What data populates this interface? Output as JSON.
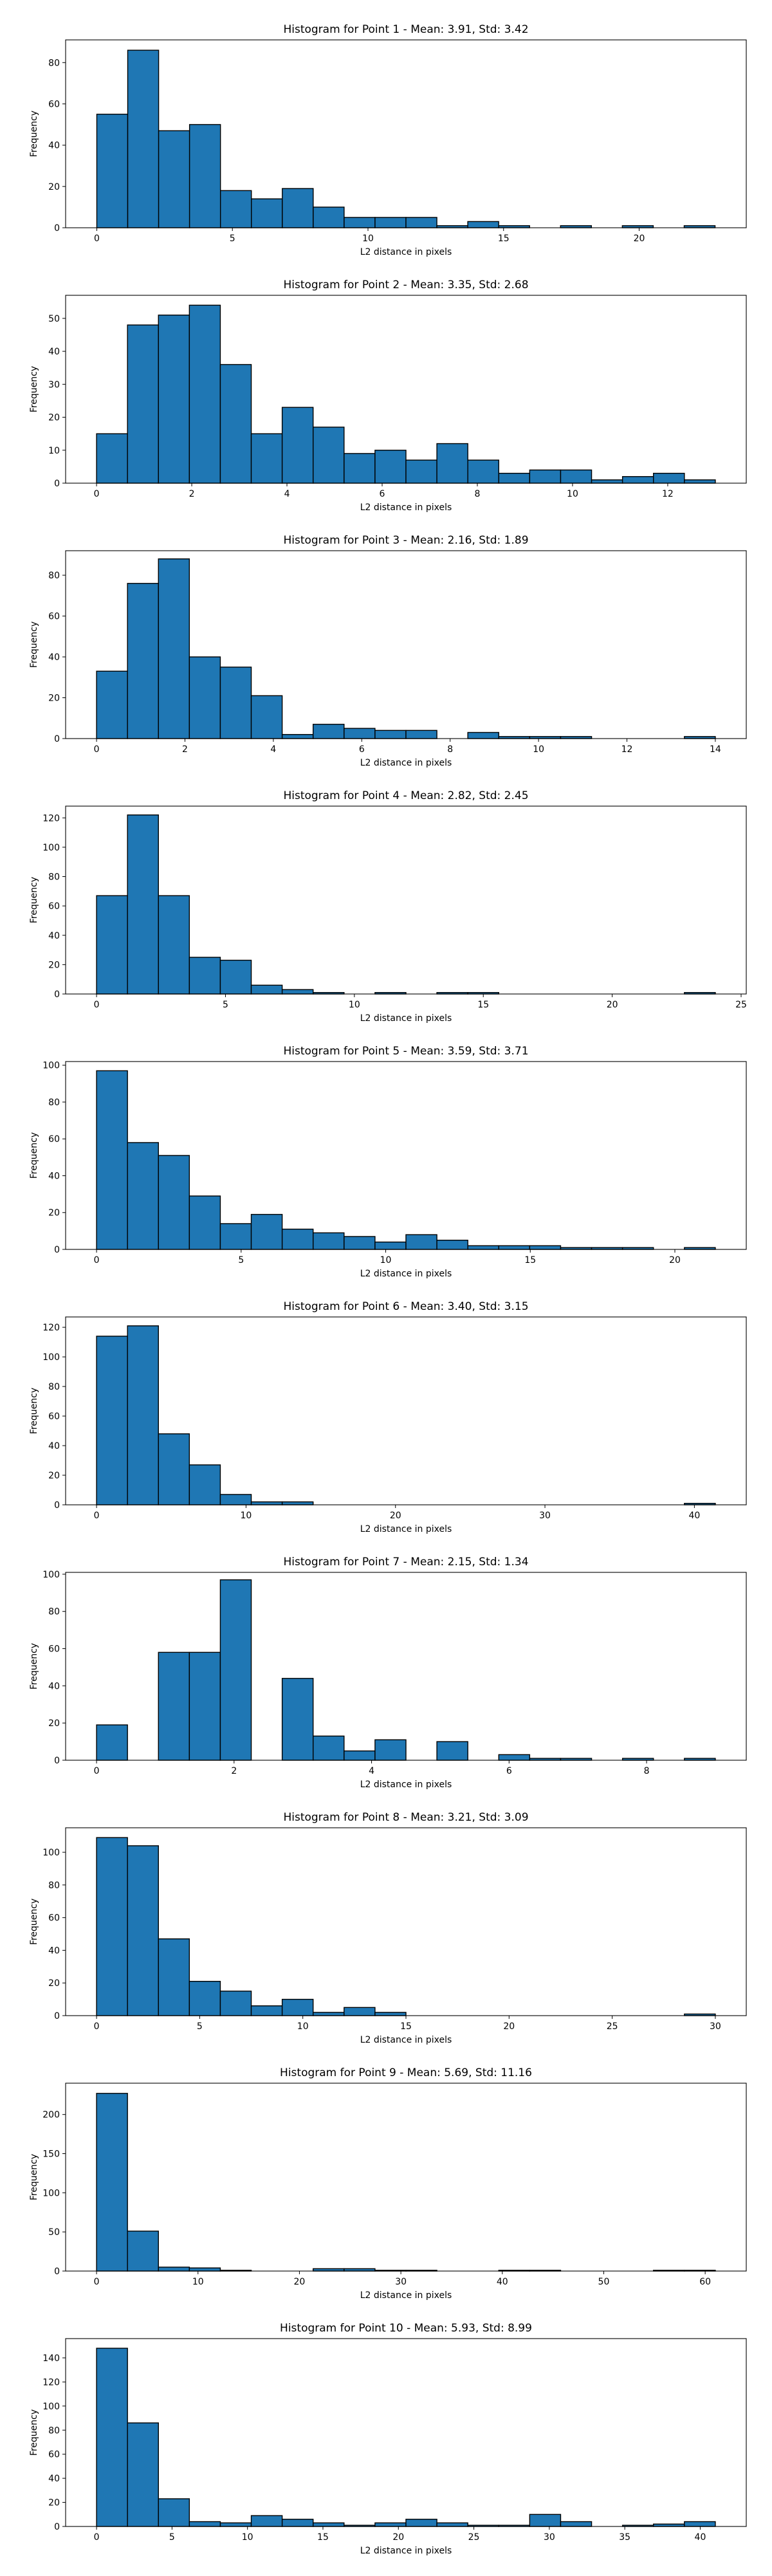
{
  "colors": {
    "bar_fill": "#1f77b4",
    "bar_edge": "#000000",
    "axis": "#000000",
    "background": "#ffffff"
  },
  "chart_data": [
    {
      "type": "bar",
      "title": "Histogram for Point 1 - Mean: 3.91, Std: 3.42",
      "xlabel": "L2 distance in pixels",
      "ylabel": "Frequency",
      "xlim": [
        -1.15,
        23.95
      ],
      "ylim": [
        0,
        91
      ],
      "xticks": [
        0,
        5,
        10,
        15,
        20
      ],
      "yticks": [
        0,
        20,
        40,
        60,
        80
      ],
      "bins": {
        "start": 0,
        "width": 1.14
      },
      "values": [
        55,
        86,
        47,
        50,
        18,
        14,
        19,
        10,
        5,
        5,
        5,
        1,
        3,
        1,
        0,
        1,
        0,
        1,
        0,
        1
      ]
    },
    {
      "type": "bar",
      "title": "Histogram for Point 2 - Mean: 3.35, Std: 2.68",
      "xlabel": "L2 distance in pixels",
      "ylabel": "Frequency",
      "xlim": [
        -0.65,
        13.65
      ],
      "ylim": [
        0,
        57
      ],
      "xticks": [
        0,
        2,
        4,
        6,
        8,
        10,
        12
      ],
      "yticks": [
        0,
        10,
        20,
        30,
        40,
        50
      ],
      "bins": {
        "start": 0,
        "width": 0.65
      },
      "values": [
        15,
        48,
        51,
        54,
        36,
        15,
        23,
        17,
        9,
        10,
        7,
        12,
        7,
        3,
        4,
        4,
        1,
        2,
        3,
        1
      ]
    },
    {
      "type": "bar",
      "title": "Histogram for Point 3 - Mean: 2.16, Std: 1.89",
      "xlabel": "L2 distance in pixels",
      "ylabel": "Frequency",
      "xlim": [
        -0.7,
        14.7
      ],
      "ylim": [
        0,
        92
      ],
      "xticks": [
        0,
        2,
        4,
        6,
        8,
        10,
        12,
        14
      ],
      "yticks": [
        0,
        20,
        40,
        60,
        80
      ],
      "bins": {
        "start": 0,
        "width": 0.7
      },
      "values": [
        33,
        76,
        88,
        40,
        35,
        21,
        2,
        7,
        5,
        4,
        4,
        0,
        3,
        1,
        1,
        1,
        0,
        0,
        0,
        1
      ]
    },
    {
      "type": "bar",
      "title": "Histogram for Point 4 - Mean: 2.82, Std: 2.45",
      "xlabel": "L2 distance in pixels",
      "ylabel": "Frequency",
      "xlim": [
        -1.2,
        25.2
      ],
      "ylim": [
        0,
        128
      ],
      "xticks": [
        0,
        5,
        10,
        15,
        20,
        25
      ],
      "yticks": [
        0,
        20,
        40,
        60,
        80,
        100,
        120
      ],
      "bins": {
        "start": 0,
        "width": 1.2
      },
      "values": [
        67,
        122,
        67,
        25,
        23,
        6,
        3,
        1,
        0,
        1,
        0,
        1,
        1,
        0,
        0,
        0,
        0,
        0,
        0,
        1
      ]
    },
    {
      "type": "bar",
      "title": "Histogram for Point 5 - Mean: 3.59, Std: 3.71",
      "xlabel": "L2 distance in pixels",
      "ylabel": "Frequency",
      "xlim": [
        -1.07,
        22.47
      ],
      "ylim": [
        0,
        102
      ],
      "xticks": [
        0,
        5,
        10,
        15,
        20
      ],
      "yticks": [
        0,
        20,
        40,
        60,
        80,
        100
      ],
      "bins": {
        "start": 0,
        "width": 1.07
      },
      "values": [
        97,
        58,
        51,
        29,
        14,
        19,
        11,
        9,
        7,
        4,
        8,
        5,
        2,
        2,
        2,
        1,
        1,
        1,
        0,
        1
      ]
    },
    {
      "type": "bar",
      "title": "Histogram for Point 6 - Mean: 3.40, Std: 3.15",
      "xlabel": "L2 distance in pixels",
      "ylabel": "Frequency",
      "xlim": [
        -2.07,
        43.47
      ],
      "ylim": [
        0,
        127
      ],
      "xticks": [
        0,
        10,
        20,
        30,
        40
      ],
      "yticks": [
        0,
        20,
        40,
        60,
        80,
        100,
        120
      ],
      "bins": {
        "start": 0,
        "width": 2.07
      },
      "values": [
        114,
        121,
        48,
        27,
        7,
        2,
        2,
        0,
        0,
        0,
        0,
        0,
        0,
        0,
        0,
        0,
        0,
        0,
        0,
        1
      ]
    },
    {
      "type": "bar",
      "title": "Histogram for Point 7 - Mean: 2.15, Std: 1.34",
      "xlabel": "L2 distance in pixels",
      "ylabel": "Frequency",
      "xlim": [
        -0.45,
        9.45
      ],
      "ylim": [
        0,
        101
      ],
      "xticks": [
        0,
        2,
        4,
        6,
        8
      ],
      "yticks": [
        0,
        20,
        40,
        60,
        80,
        100
      ],
      "bins": {
        "start": 0,
        "width": 0.45
      },
      "values": [
        19,
        0,
        58,
        58,
        97,
        0,
        44,
        13,
        5,
        11,
        0,
        10,
        0,
        3,
        1,
        1,
        0,
        1,
        0,
        1
      ]
    },
    {
      "type": "bar",
      "title": "Histogram for Point 8 - Mean: 3.21, Std: 3.09",
      "xlabel": "L2 distance in pixels",
      "ylabel": "Frequency",
      "xlim": [
        -1.5,
        31.5
      ],
      "ylim": [
        0,
        115
      ],
      "xticks": [
        0,
        5,
        10,
        15,
        20,
        25,
        30
      ],
      "yticks": [
        0,
        20,
        40,
        60,
        80,
        100
      ],
      "bins": {
        "start": 0,
        "width": 1.5
      },
      "values": [
        109,
        104,
        47,
        21,
        15,
        6,
        10,
        2,
        5,
        2,
        0,
        0,
        0,
        0,
        0,
        0,
        0,
        0,
        0,
        1
      ]
    },
    {
      "type": "bar",
      "title": "Histogram for Point 9 - Mean: 5.69, Std: 11.16",
      "xlabel": "L2 distance in pixels",
      "ylabel": "Frequency",
      "xlim": [
        -3.05,
        64.05
      ],
      "ylim": [
        0,
        240
      ],
      "xticks": [
        0,
        10,
        20,
        30,
        40,
        50,
        60
      ],
      "yticks": [
        0,
        50,
        100,
        150,
        200
      ],
      "bins": {
        "start": 0,
        "width": 3.05
      },
      "values": [
        227,
        51,
        5,
        4,
        1,
        0,
        0,
        3,
        3,
        1,
        1,
        0,
        0,
        1,
        1,
        0,
        0,
        0,
        1,
        1
      ]
    },
    {
      "type": "bar",
      "title": "Histogram for Point 10 - Mean: 5.93, Std: 8.99",
      "xlabel": "L2 distance in pixels",
      "ylabel": "Frequency",
      "xlim": [
        -2.05,
        43.05
      ],
      "ylim": [
        0,
        156
      ],
      "xticks": [
        0,
        5,
        10,
        15,
        20,
        25,
        30,
        35,
        40
      ],
      "yticks": [
        0,
        20,
        40,
        60,
        80,
        100,
        120,
        140
      ],
      "bins": {
        "start": 0,
        "width": 2.05
      },
      "values": [
        148,
        86,
        23,
        4,
        3,
        9,
        6,
        3,
        1,
        3,
        6,
        3,
        1,
        1,
        10,
        4,
        0,
        1,
        2,
        4
      ]
    }
  ]
}
